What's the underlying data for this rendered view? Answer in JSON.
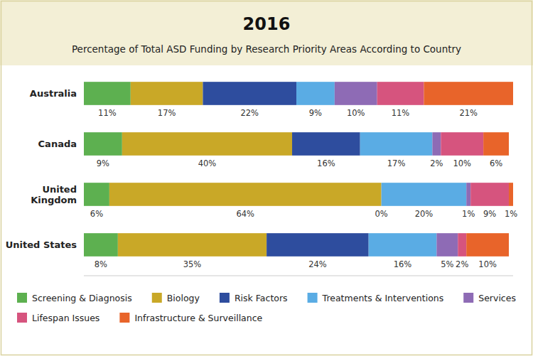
{
  "chart_data": {
    "type": "bar",
    "orientation": "horizontal",
    "stacked": true,
    "title": "2016",
    "subtitle": "Percentage of Total ASD Funding by Research Priority Areas According to Country",
    "categories": [
      "Australia",
      "Canada",
      "United\nKingdom",
      "United States"
    ],
    "series": [
      {
        "name": "Screening & Diagnosis",
        "color": "#5db050",
        "values": [
          11,
          9,
          6,
          8
        ],
        "value_labels": [
          "11%",
          "9%",
          "6%",
          "8%"
        ]
      },
      {
        "name": "Biology",
        "color": "#c9a827",
        "values": [
          17,
          40,
          64,
          35
        ],
        "value_labels": [
          "17%",
          "40%",
          "64%",
          "35%"
        ]
      },
      {
        "name": "Risk Factors",
        "color": "#2e4d9e",
        "values": [
          22,
          16,
          0,
          24
        ],
        "value_labels": [
          "22%",
          "16%",
          "0%",
          "24%"
        ]
      },
      {
        "name": "Treatments & Interventions",
        "color": "#5aace4",
        "values": [
          9,
          17,
          20,
          16
        ],
        "value_labels": [
          "9%",
          "17%",
          "20%",
          "16%"
        ]
      },
      {
        "name": "Services",
        "color": "#8e6bb5",
        "values": [
          10,
          2,
          1,
          5
        ],
        "value_labels": [
          "10%",
          "2%",
          "1%",
          "5%"
        ]
      },
      {
        "name": "Lifespan Issues",
        "color": "#d6547e",
        "values": [
          11,
          10,
          9,
          2
        ],
        "value_labels": [
          "11%",
          "10%",
          "9%",
          "2%"
        ]
      },
      {
        "name": "Infrastructure & Surveillance",
        "color": "#e8642a",
        "values": [
          21,
          6,
          1,
          10
        ],
        "value_labels": [
          "21%",
          "6%",
          "1%",
          "10%"
        ]
      }
    ],
    "xlim": [
      0,
      101
    ],
    "tick_labels": "y",
    "data_labels": true,
    "legend": "bottom",
    "grid": false
  }
}
